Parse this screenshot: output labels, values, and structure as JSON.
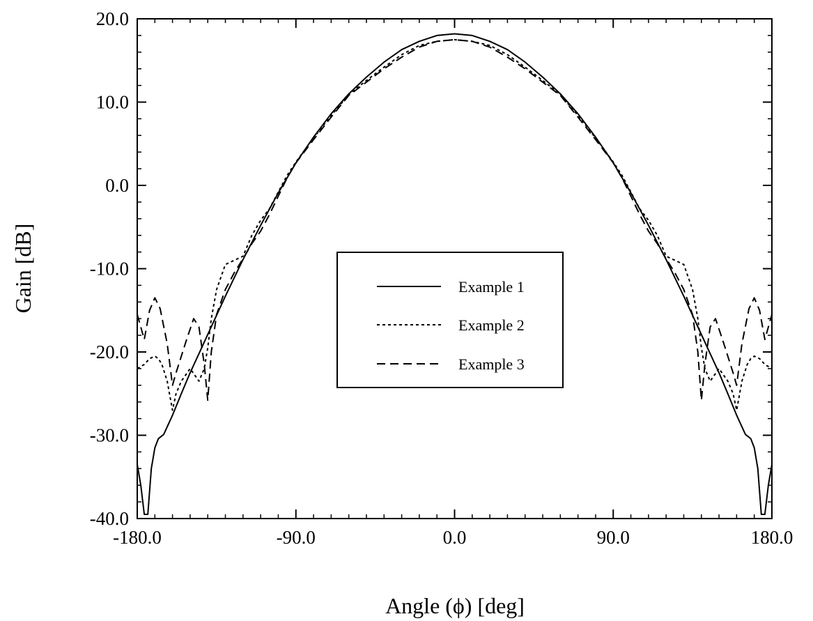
{
  "chart_data": {
    "type": "line",
    "xlabel": "Angle (ϕ) [deg]",
    "ylabel": "Gain [dB]",
    "xlim": [
      -180,
      180
    ],
    "ylim": [
      -40,
      20
    ],
    "xticks": [
      -180,
      -90,
      0,
      90,
      180
    ],
    "xtick_labels": [
      "-180.0",
      "-90.0",
      "0.0",
      "90.0",
      "180.0"
    ],
    "yticks": [
      -40,
      -30,
      -20,
      -10,
      0,
      10,
      20
    ],
    "ytick_labels": [
      "-40.0",
      "-30.0",
      "-20.0",
      "-10.0",
      "0.0",
      "10.0",
      "20.0"
    ],
    "x_minor_step": 10,
    "y_minor_step": 2,
    "grid": false,
    "legend_position": "center",
    "series": [
      {
        "name": "Example 1",
        "style": "solid",
        "x": [
          0,
          10,
          20,
          30,
          40,
          50,
          60,
          70,
          80,
          90,
          100,
          110,
          120,
          130,
          140,
          145,
          150,
          155,
          160,
          165,
          168,
          170,
          172,
          174,
          176,
          178,
          180
        ],
        "y": [
          18.2,
          18.0,
          17.3,
          16.3,
          14.8,
          13.0,
          11.0,
          8.6,
          5.8,
          2.7,
          -0.9,
          -4.8,
          -8.9,
          -13.3,
          -17.9,
          -20.2,
          -22.5,
          -25.0,
          -27.6,
          -29.9,
          -30.4,
          -31.5,
          -34.0,
          -39.5,
          -39.5,
          -36.0,
          -33.5
        ]
      },
      {
        "name": "Example 2",
        "style": "dotted",
        "x": [
          0,
          10,
          20,
          30,
          40,
          50,
          60,
          70,
          80,
          90,
          95,
          100,
          105,
          110,
          115,
          120,
          125,
          130,
          135,
          138,
          140,
          142,
          145,
          150,
          155,
          158,
          160,
          163,
          166,
          168,
          170,
          173,
          176,
          180
        ],
        "y": [
          17.5,
          17.3,
          16.8,
          15.7,
          14.2,
          12.6,
          10.9,
          8.4,
          5.7,
          2.8,
          1.2,
          -0.8,
          -2.8,
          -4.2,
          -6.0,
          -8.5,
          -9.0,
          -9.5,
          -12.5,
          -16.0,
          -19.5,
          -22.0,
          -23.5,
          -22.0,
          -23.5,
          -25.0,
          -27.0,
          -23.5,
          -21.5,
          -20.8,
          -20.5,
          -20.8,
          -21.5,
          -22.0
        ]
      },
      {
        "name": "Example 3",
        "style": "dashed",
        "x": [
          0,
          10,
          20,
          30,
          40,
          50,
          60,
          70,
          80,
          90,
          95,
          100,
          105,
          110,
          115,
          120,
          125,
          130,
          135,
          138,
          140,
          142,
          145,
          148,
          152,
          155,
          158,
          160,
          163,
          167,
          170,
          173,
          176,
          180
        ],
        "y": [
          17.5,
          17.3,
          16.6,
          15.4,
          14.0,
          12.4,
          10.8,
          8.2,
          5.5,
          2.7,
          0.9,
          -1.3,
          -3.5,
          -5.5,
          -7.0,
          -8.8,
          -10.5,
          -12.5,
          -15.5,
          -20.0,
          -25.8,
          -21.5,
          -17.0,
          -16.0,
          -18.5,
          -20.5,
          -22.5,
          -24.0,
          -19.0,
          -14.8,
          -13.5,
          -15.0,
          -18.5,
          -15.5
        ]
      }
    ]
  }
}
